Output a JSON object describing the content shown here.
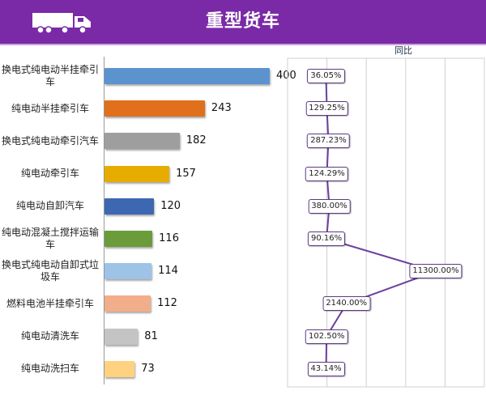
{
  "header": {
    "title": "重型货车",
    "icon": "truck-icon",
    "bg_color": "#7a2aa6"
  },
  "chart_data": {
    "type": "bar",
    "orientation": "horizontal",
    "categories": [
      "换电式纯电动半挂牵引车",
      "纯电动半挂牵引车",
      "换电式纯电动牵引汽车",
      "纯电动牵引车",
      "纯电动自卸汽车",
      "纯电动混凝土搅拌运输车",
      "换电式纯电动自卸式垃圾车",
      "燃料电池半挂牵引车",
      "纯电动清洗车",
      "纯电动洗扫车"
    ],
    "values": [
      400,
      243,
      182,
      157,
      120,
      116,
      114,
      112,
      81,
      73
    ],
    "bar_colors": [
      "#5b93cf",
      "#e0701c",
      "#9e9e9e",
      "#e6ac00",
      "#3d67b1",
      "#6a9c3b",
      "#9dc3e6",
      "#f2ae8a",
      "#c4c4c4",
      "#ffd27f"
    ],
    "xlim": [
      0,
      420
    ],
    "yoy": {
      "label": "同比",
      "type": "line",
      "values": [
        36.05,
        129.25,
        287.23,
        124.29,
        380.0,
        90.16,
        11300.0,
        2140.0,
        102.5,
        43.14
      ],
      "labels": [
        "36.05%",
        "129.25%",
        "287.23%",
        "124.29%",
        "380.00%",
        "90.16%",
        "11300.00%",
        "2140.00%",
        "102.50%",
        "43.14%"
      ],
      "line_color": "#6b3fa0",
      "grid": true
    }
  }
}
